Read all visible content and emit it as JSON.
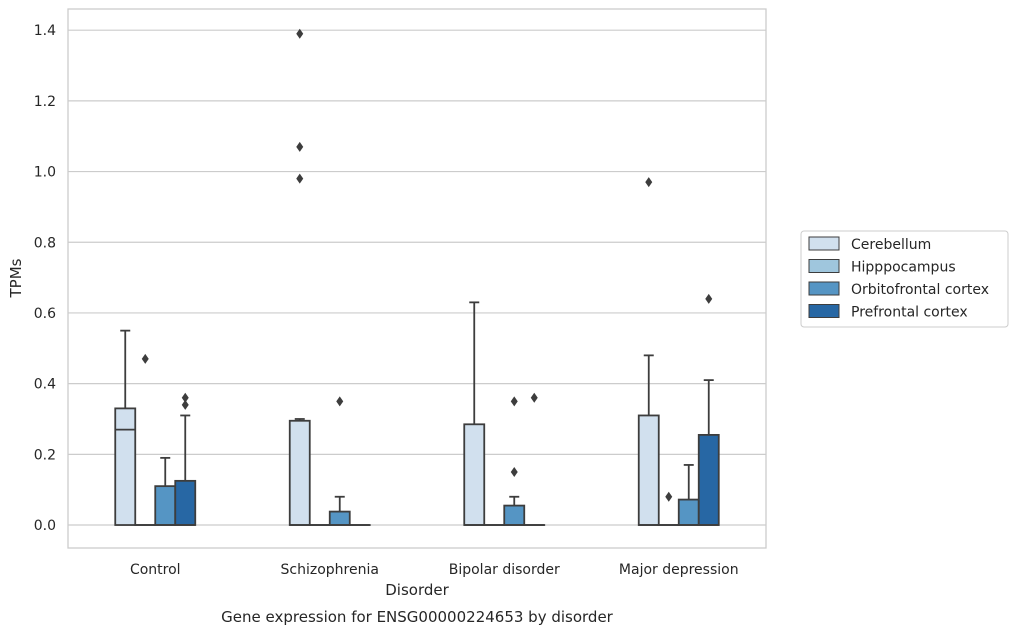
{
  "chart_data": {
    "type": "box",
    "title": "",
    "caption": "Gene expression for ENSG00000224653 by disorder",
    "xlabel": "Disorder",
    "ylabel": "TPMs",
    "ylim": [
      -0.065,
      1.46
    ],
    "yticks": [
      0.0,
      0.2,
      0.4,
      0.6,
      0.8,
      1.0,
      1.2,
      1.4
    ],
    "grid": "horizontal",
    "legend_position": "right",
    "categories": [
      "Control",
      "Schizophrenia",
      "Bipolar disorder",
      "Major depression"
    ],
    "series": [
      {
        "name": "Cerebellum",
        "color": "#d1e0ee",
        "boxes": [
          {
            "q1": 0.0,
            "median": 0.27,
            "q3": 0.33,
            "whisker_low": 0.0,
            "whisker_high": 0.55,
            "outliers": []
          },
          {
            "q1": 0.0,
            "median": 0.0,
            "q3": 0.295,
            "whisker_low": 0.0,
            "whisker_high": 0.3,
            "outliers": [
              0.98,
              1.07,
              1.39
            ]
          },
          {
            "q1": 0.0,
            "median": 0.0,
            "q3": 0.285,
            "whisker_low": 0.0,
            "whisker_high": 0.63,
            "outliers": []
          },
          {
            "q1": 0.0,
            "median": 0.0,
            "q3": 0.31,
            "whisker_low": 0.0,
            "whisker_high": 0.48,
            "outliers": [
              0.97
            ]
          }
        ]
      },
      {
        "name": "Hipppocampus",
        "color": "#9fc6dd",
        "boxes": [
          {
            "q1": 0.0,
            "median": 0.0,
            "q3": 0.0,
            "whisker_low": 0.0,
            "whisker_high": 0.0,
            "outliers": [
              0.47
            ]
          },
          {
            "q1": 0.0,
            "median": 0.0,
            "q3": 0.0,
            "whisker_low": 0.0,
            "whisker_high": 0.0,
            "outliers": []
          },
          {
            "q1": 0.0,
            "median": 0.0,
            "q3": 0.0,
            "whisker_low": 0.0,
            "whisker_high": 0.0,
            "outliers": []
          },
          {
            "q1": 0.0,
            "median": 0.0,
            "q3": 0.0,
            "whisker_low": 0.0,
            "whisker_high": 0.0,
            "outliers": [
              0.08
            ]
          }
        ]
      },
      {
        "name": "Orbitofrontal cortex",
        "color": "#5595c4",
        "boxes": [
          {
            "q1": 0.0,
            "median": 0.0,
            "q3": 0.11,
            "whisker_low": 0.0,
            "whisker_high": 0.19,
            "outliers": []
          },
          {
            "q1": 0.0,
            "median": 0.0,
            "q3": 0.038,
            "whisker_low": 0.0,
            "whisker_high": 0.08,
            "outliers": [
              0.35
            ]
          },
          {
            "q1": 0.0,
            "median": 0.0,
            "q3": 0.055,
            "whisker_low": 0.0,
            "whisker_high": 0.08,
            "outliers": [
              0.15,
              0.35
            ]
          },
          {
            "q1": 0.0,
            "median": 0.0,
            "q3": 0.072,
            "whisker_low": 0.0,
            "whisker_high": 0.17,
            "outliers": []
          }
        ]
      },
      {
        "name": "Prefrontal cortex",
        "color": "#2767a4",
        "boxes": [
          {
            "q1": 0.0,
            "median": 0.0,
            "q3": 0.125,
            "whisker_low": 0.0,
            "whisker_high": 0.31,
            "outliers": [
              0.34,
              0.36
            ]
          },
          {
            "q1": 0.0,
            "median": 0.0,
            "q3": 0.0,
            "whisker_low": 0.0,
            "whisker_high": 0.0,
            "outliers": []
          },
          {
            "q1": 0.0,
            "median": 0.0,
            "q3": 0.0,
            "whisker_low": 0.0,
            "whisker_high": 0.0,
            "outliers": [
              0.36
            ]
          },
          {
            "q1": 0.0,
            "median": 0.0,
            "q3": 0.255,
            "whisker_low": 0.0,
            "whisker_high": 0.41,
            "outliers": [
              0.64
            ]
          }
        ]
      }
    ]
  }
}
